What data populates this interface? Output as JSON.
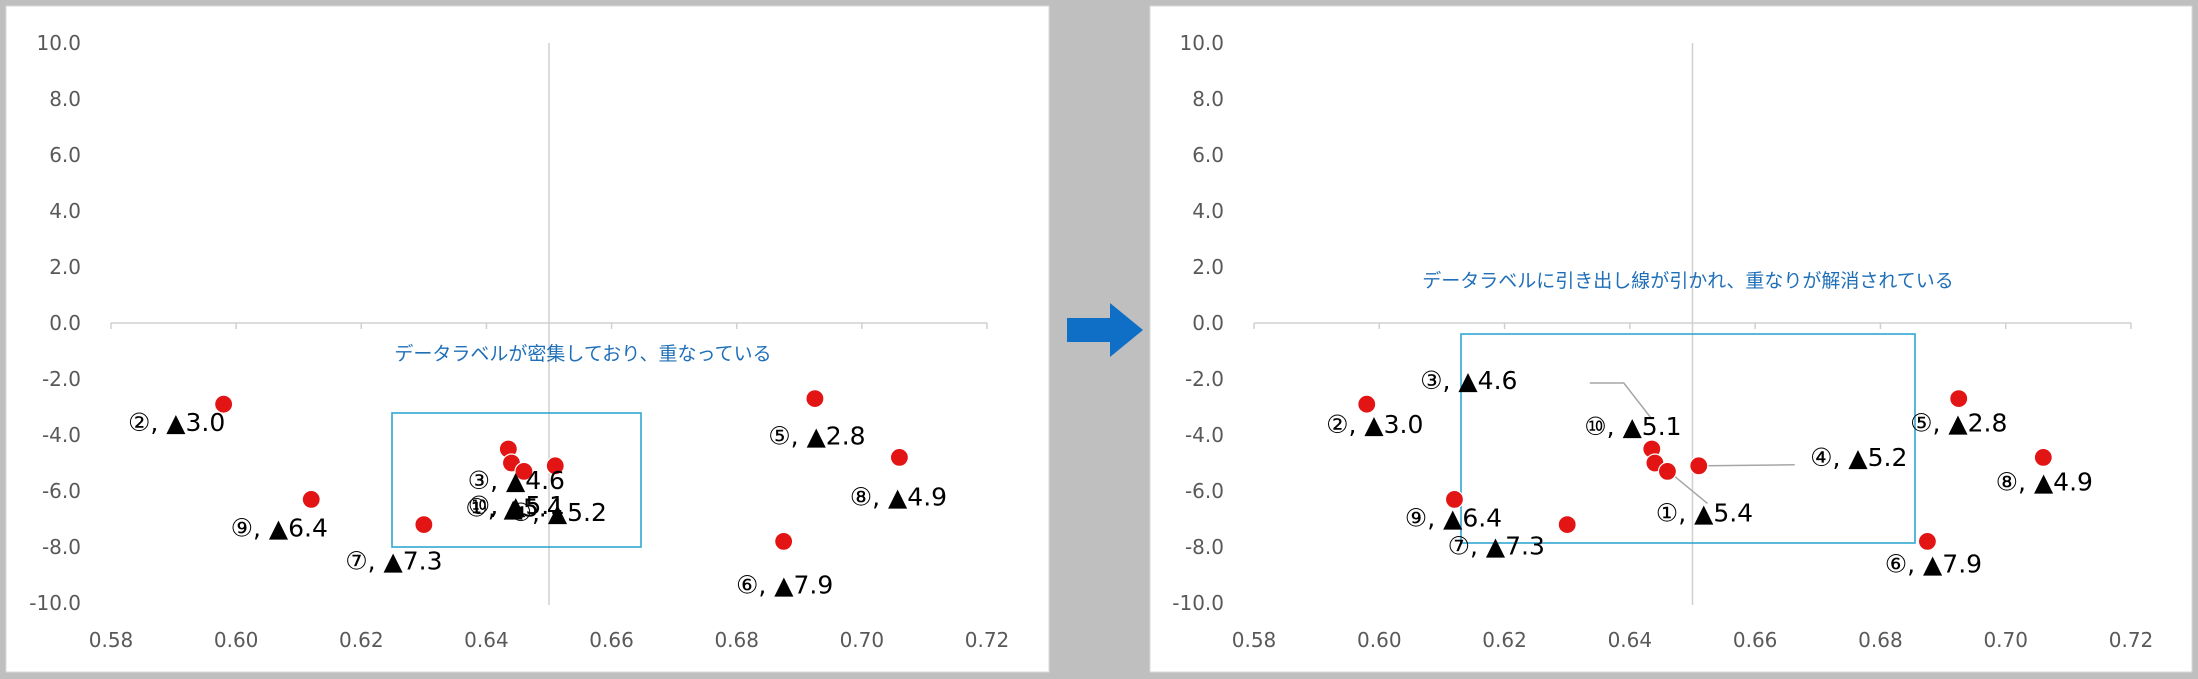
{
  "chart_data": [
    {
      "type": "scatter",
      "title": "",
      "xlabel": "",
      "ylabel": "",
      "xlim": [
        0.58,
        0.72
      ],
      "ylim": [
        -10.0,
        10.0
      ],
      "x_ticks": [
        "0.58",
        "0.60",
        "0.62",
        "0.64",
        "0.66",
        "0.68",
        "0.70",
        "0.72"
      ],
      "y_ticks": [
        "10.0",
        "8.0",
        "6.0",
        "4.0",
        "2.0",
        "0.0",
        "-2.0",
        "-4.0",
        "-6.0",
        "-8.0",
        "-10.0"
      ],
      "grid": false,
      "marker_color": "#e31414",
      "annotation": "データラベルが密集しており、重なっている",
      "points": [
        {
          "x": 0.598,
          "y": -2.9,
          "label": "②, ▲3.0"
        },
        {
          "x": 0.612,
          "y": -6.3,
          "label": "⑨, ▲6.4"
        },
        {
          "x": 0.63,
          "y": -7.2,
          "label": "⑦, ▲7.3"
        },
        {
          "x": 0.6435,
          "y": -4.5,
          "label": "③, ▲4.6"
        },
        {
          "x": 0.644,
          "y": -5.0,
          "label": "⑩, ▲5.1"
        },
        {
          "x": 0.646,
          "y": -5.3,
          "label": "①, ▲5.4"
        },
        {
          "x": 0.651,
          "y": -5.1,
          "label": "④, ▲5.2"
        },
        {
          "x": 0.6925,
          "y": -2.7,
          "label": "⑤, ▲2.8"
        },
        {
          "x": 0.706,
          "y": -4.8,
          "label": "⑧, ▲4.9"
        },
        {
          "x": 0.6875,
          "y": -7.8,
          "label": "⑥, ▲7.9"
        }
      ]
    },
    {
      "type": "scatter",
      "title": "",
      "xlabel": "",
      "ylabel": "",
      "xlim": [
        0.58,
        0.72
      ],
      "ylim": [
        -10.0,
        10.0
      ],
      "x_ticks": [
        "0.58",
        "0.60",
        "0.62",
        "0.64",
        "0.66",
        "0.68",
        "0.70",
        "0.72"
      ],
      "y_ticks": [
        "10.0",
        "8.0",
        "6.0",
        "4.0",
        "2.0",
        "0.0",
        "-2.0",
        "-4.0",
        "-6.0",
        "-8.0",
        "-10.0"
      ],
      "grid": false,
      "marker_color": "#e31414",
      "annotation": "データラベルに引き出し線が引かれ、重なりが解消されている",
      "points": [
        {
          "x": 0.598,
          "y": -2.9,
          "label": "②, ▲3.0"
        },
        {
          "x": 0.612,
          "y": -6.3,
          "label": "⑨, ▲6.4"
        },
        {
          "x": 0.63,
          "y": -7.2,
          "label": "⑦, ▲7.3"
        },
        {
          "x": 0.6435,
          "y": -4.5,
          "label": "③, ▲4.6"
        },
        {
          "x": 0.644,
          "y": -5.0,
          "label": "⑩, ▲5.1"
        },
        {
          "x": 0.646,
          "y": -5.3,
          "label": "①, ▲5.4"
        },
        {
          "x": 0.651,
          "y": -5.1,
          "label": "④, ▲5.2"
        },
        {
          "x": 0.6925,
          "y": -2.7,
          "label": "⑤, ▲2.8"
        },
        {
          "x": 0.706,
          "y": -4.8,
          "label": "⑧, ▲4.9"
        },
        {
          "x": 0.6875,
          "y": -7.8,
          "label": "⑥, ▲7.9"
        }
      ]
    }
  ]
}
